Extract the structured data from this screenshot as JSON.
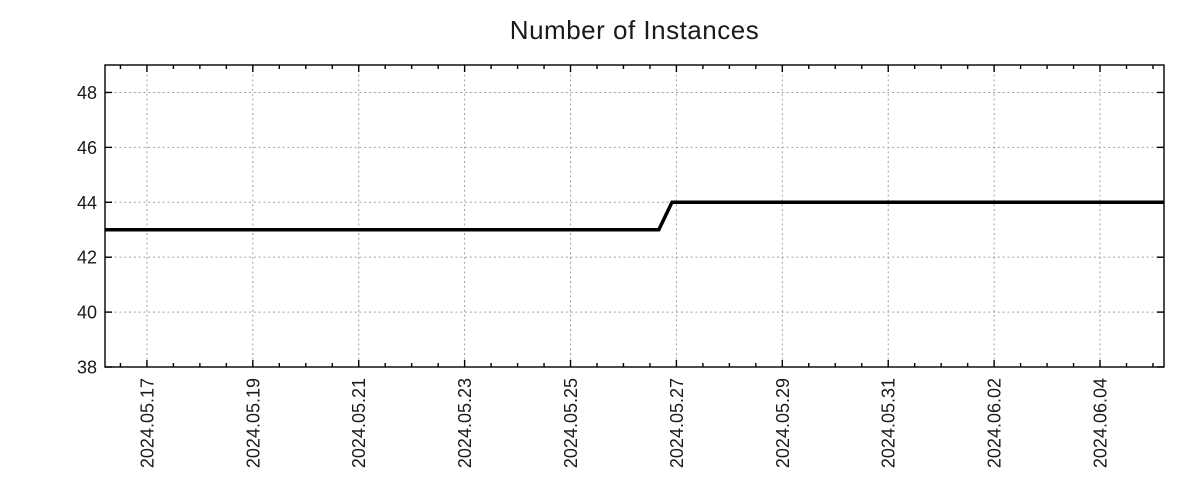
{
  "chart_data": {
    "type": "line",
    "title": "Number of Instances",
    "xlabel": "",
    "ylabel": "",
    "legend": null,
    "background_color": "#ffffff",
    "axis_color": "#000000",
    "grid_color": "#a0a0a0",
    "text_color": "#1a1a1a",
    "grid_on": true,
    "x_axis": {
      "type": "time",
      "range_start": "2024-05-16 05:00",
      "range_end": "2024-06-05 05:00",
      "minor_tick_interval_hours": 12,
      "major_ticks": [
        {
          "time": "2024-05-17 00:00",
          "label": "2024.05.17"
        },
        {
          "time": "2024-05-19 00:00",
          "label": "2024.05.19"
        },
        {
          "time": "2024-05-21 00:00",
          "label": "2024.05.21"
        },
        {
          "time": "2024-05-23 00:00",
          "label": "2024.05.23"
        },
        {
          "time": "2024-05-25 00:00",
          "label": "2024.05.25"
        },
        {
          "time": "2024-05-27 00:00",
          "label": "2024.05.27"
        },
        {
          "time": "2024-05-29 00:00",
          "label": "2024.05.29"
        },
        {
          "time": "2024-05-31 00:00",
          "label": "2024.05.31"
        },
        {
          "time": "2024-06-02 00:00",
          "label": "2024.06.02"
        },
        {
          "time": "2024-06-04 00:00",
          "label": "2024.06.04"
        }
      ]
    },
    "y_axis": {
      "min": 38,
      "max": 49,
      "ticks": [
        {
          "value": 38,
          "label": "38"
        },
        {
          "value": 40,
          "label": "40"
        },
        {
          "value": 42,
          "label": "42"
        },
        {
          "value": 44,
          "label": "44"
        },
        {
          "value": 46,
          "label": "46"
        },
        {
          "value": 48,
          "label": "48"
        }
      ]
    },
    "series": [
      {
        "name": "instances",
        "color": "#000000",
        "line_width": 3.5,
        "points": [
          {
            "time": "2024-05-16 05:00",
            "value": 43
          },
          {
            "time": "2024-05-26 16:00",
            "value": 43
          },
          {
            "time": "2024-05-26 22:00",
            "value": 44
          },
          {
            "time": "2024-06-05 05:00",
            "value": 44
          }
        ]
      }
    ]
  }
}
